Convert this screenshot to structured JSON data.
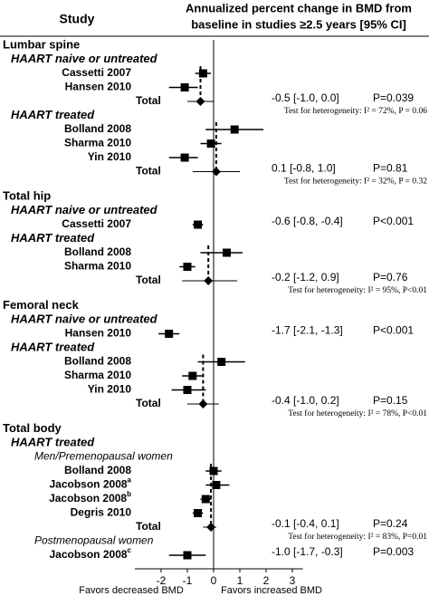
{
  "chart_data": {
    "type": "forest",
    "header": "Study",
    "title": [
      "Annualized percent change in BMD from",
      "baseline in studies ≥2.5 years [95% CI]"
    ],
    "xlim": [
      -3,
      3.4
    ],
    "xticks": [
      -2,
      -1,
      0,
      1,
      2,
      3
    ],
    "xlabel_left": "Favors decreased BMD",
    "xlabel_right": "Favors increased BMD",
    "color": "#000000",
    "rows": [
      {
        "label": "Lumbar spine",
        "style": "section"
      },
      {
        "label": "HAART naive or untreated",
        "style": "subgroup"
      },
      {
        "label": "Cassetti 2007",
        "style": "study",
        "estimate": -0.4,
        "ci": [
          -0.7,
          -0.1
        ]
      },
      {
        "label": "Hansen 2010",
        "style": "study",
        "estimate": -1.1,
        "ci": [
          -1.7,
          -0.6
        ]
      },
      {
        "label": "Total",
        "style": "total",
        "estimate": -0.5,
        "ci": [
          -1.0,
          0.0
        ],
        "value_label": "-0.5 [-1.0, 0.0]",
        "p": "P=0.039",
        "heterogeneity": "Test for heterogeneity: I² = 72%, P = 0.06"
      },
      {
        "label": "HAART treated",
        "style": "subgroup"
      },
      {
        "label": "Bolland 2008",
        "style": "study",
        "estimate": 0.8,
        "ci": [
          -0.3,
          1.9
        ]
      },
      {
        "label": "Sharma 2010",
        "style": "study",
        "estimate": -0.1,
        "ci": [
          -0.5,
          0.3
        ]
      },
      {
        "label": "Yin 2010",
        "style": "study",
        "estimate": -1.1,
        "ci": [
          -1.7,
          -0.6
        ]
      },
      {
        "label": "Total",
        "style": "total",
        "estimate": 0.1,
        "ci": [
          -0.8,
          1.0
        ],
        "value_label": "0.1 [-0.8, 1.0]",
        "p": "P=0.81",
        "heterogeneity": "Test for heterogeneity: I² = 32%, P = 0.32"
      },
      {
        "label": "Total hip",
        "style": "section"
      },
      {
        "label": "HAART naive or untreated",
        "style": "subgroup"
      },
      {
        "label": "Cassetti 2007",
        "style": "study",
        "estimate": -0.6,
        "ci": [
          -0.8,
          -0.4
        ],
        "value_label": "-0.6 [-0.8, -0.4]",
        "p": "P<0.001"
      },
      {
        "label": "HAART treated",
        "style": "subgroup"
      },
      {
        "label": "Bolland 2008",
        "style": "study",
        "estimate": 0.5,
        "ci": [
          -0.5,
          1.1
        ]
      },
      {
        "label": "Sharma 2010",
        "style": "study",
        "estimate": -1.0,
        "ci": [
          -1.3,
          -0.7
        ]
      },
      {
        "label": "Total",
        "style": "total",
        "estimate": -0.2,
        "ci": [
          -1.2,
          0.9
        ],
        "value_label": "-0.2 [-1.2, 0.9]",
        "p": "P=0.76",
        "heterogeneity": "Test for heterogeneity: I² = 95%, P<0.01"
      },
      {
        "label": "Femoral neck",
        "style": "section"
      },
      {
        "label": "HAART naive or untreated",
        "style": "subgroup"
      },
      {
        "label": "Hansen 2010",
        "style": "study",
        "estimate": -1.7,
        "ci": [
          -2.1,
          -1.3
        ],
        "value_label": "-1.7 [-2.1, -1.3]",
        "p": "P<0.001"
      },
      {
        "label": "HAART treated",
        "style": "subgroup"
      },
      {
        "label": "Bolland 2008",
        "style": "study",
        "estimate": 0.3,
        "ci": [
          -0.6,
          1.2
        ]
      },
      {
        "label": "Sharma 2010",
        "style": "study",
        "estimate": -0.8,
        "ci": [
          -1.2,
          -0.4
        ]
      },
      {
        "label": "Yin 2010",
        "style": "study",
        "estimate": -1.0,
        "ci": [
          -1.6,
          -0.3
        ]
      },
      {
        "label": "Total",
        "style": "total",
        "estimate": -0.4,
        "ci": [
          -1.0,
          0.2
        ],
        "value_label": "-0.4 [-1.0, 0.2]",
        "p": "P=0.15",
        "heterogeneity": "Test for heterogeneity: I² = 78%, P<0.01"
      },
      {
        "label": "Total body",
        "style": "section"
      },
      {
        "label": "HAART treated",
        "style": "subgroup"
      },
      {
        "label": "Men/Premenopausal women",
        "style": "subsubgroup"
      },
      {
        "label": "Bolland 2008",
        "style": "study",
        "estimate": 0.0,
        "ci": [
          -0.3,
          0.3
        ]
      },
      {
        "label": "Jacobson 2008",
        "sup": "a",
        "style": "study",
        "estimate": 0.1,
        "ci": [
          -0.3,
          0.6
        ]
      },
      {
        "label": "Jacobson 2008",
        "sup": "b",
        "style": "study",
        "estimate": -0.3,
        "ci": [
          -0.5,
          -0.1
        ]
      },
      {
        "label": "Degris 2010",
        "style": "study",
        "estimate": -0.6,
        "ci": [
          -0.8,
          -0.4
        ]
      },
      {
        "label": "Total",
        "style": "total",
        "estimate": -0.1,
        "ci": [
          -0.4,
          0.1
        ],
        "value_label": "-0.1 [-0.4, 0.1]",
        "p": "P=0.24",
        "heterogeneity": "Test for heterogeneity: I² = 83%, P=0.01"
      },
      {
        "label": "Postmenopausal women",
        "style": "subsubgroup"
      },
      {
        "label": "Jacobson 2008",
        "sup": "c",
        "style": "study",
        "estimate": -1.0,
        "ci": [
          -1.7,
          -0.3
        ],
        "value_label": "-1.0 [-1.7, -0.3]",
        "p": "P=0.003"
      }
    ]
  }
}
